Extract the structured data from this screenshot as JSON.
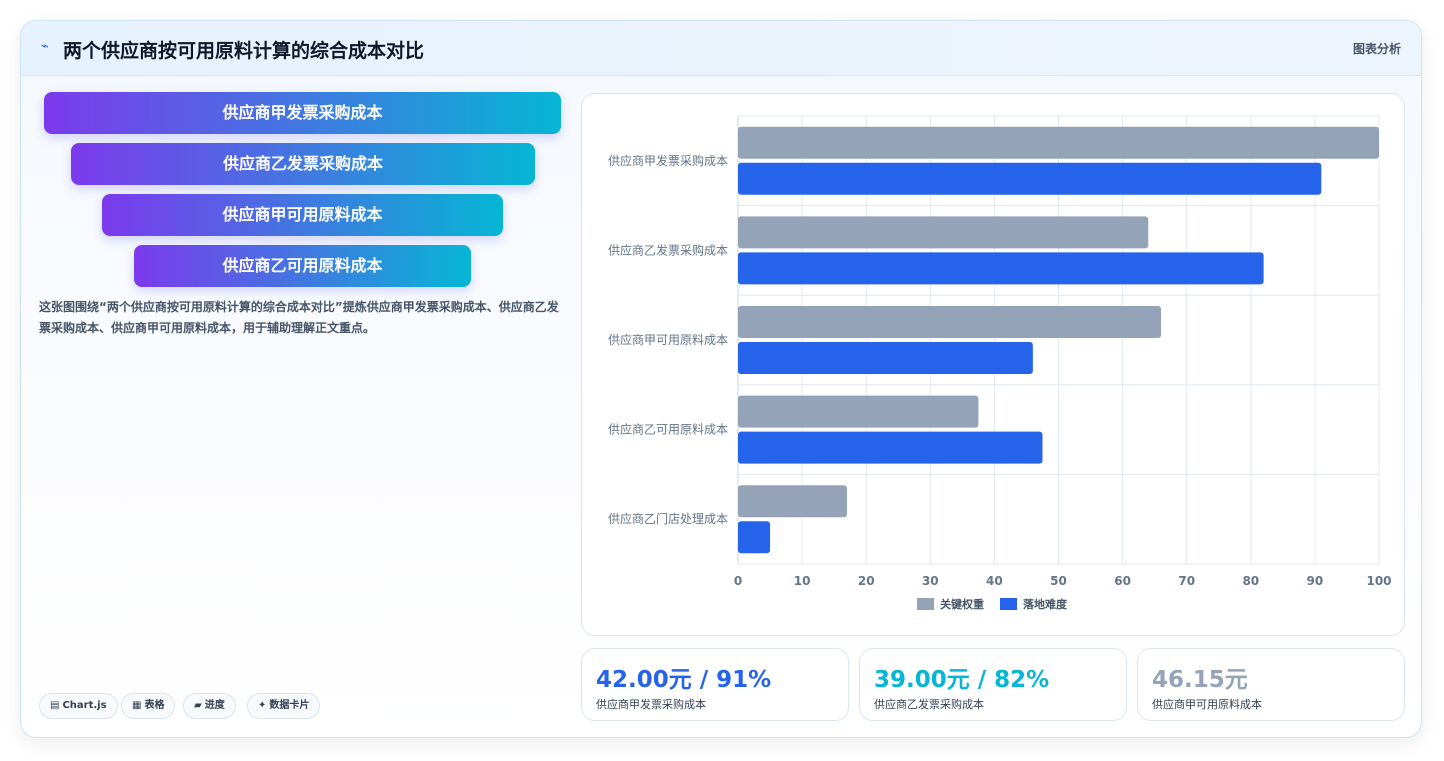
{
  "header": {
    "title": "两个供应商按可用原料计算的综合成本对比",
    "tag": "图表分析",
    "icon": "chart-line-icon"
  },
  "funnel": {
    "items": [
      {
        "label": "供应商甲发票采购成本"
      },
      {
        "label": "供应商乙发票采购成本"
      },
      {
        "label": "供应商甲可用原料成本"
      },
      {
        "label": "供应商乙可用原料成本"
      }
    ]
  },
  "description": "这张图围绕“两个供应商按可用原料计算的综合成本对比”提炼供应商甲发票采购成本、供应商乙发票采购成本、供应商甲可用原料成本，用于辅助理解正文重点。",
  "pills": [
    {
      "icon": "▤",
      "label": "Chart.js"
    },
    {
      "icon": "▦",
      "label": "表格"
    },
    {
      "icon": "▰",
      "label": "进度"
    },
    {
      "icon": "✦",
      "label": "数据卡片"
    }
  ],
  "kpis": [
    {
      "value": "42.00元 / 91%",
      "label": "供应商甲发票采购成本",
      "color": "#2563eb"
    },
    {
      "value": "39.00元 / 82%",
      "label": "供应商乙发票采购成本",
      "color": "#06b6d4"
    },
    {
      "value": "46.15元",
      "label": "供应商甲可用原料成本",
      "color": "#94a3b8"
    }
  ],
  "chart_data": {
    "type": "bar",
    "orientation": "horizontal",
    "categories": [
      "供应商甲发票采购成本",
      "供应商乙发票采购成本",
      "供应商甲可用原料成本",
      "供应商乙可用原料成本",
      "供应商乙门店处理成本"
    ],
    "series": [
      {
        "name": "关键权重",
        "values": [
          100,
          64,
          66,
          37.5,
          17
        ],
        "color": "#94a3b8"
      },
      {
        "name": "落地难度",
        "values": [
          91,
          82,
          46,
          47.5,
          5
        ],
        "color": "#2563eb"
      }
    ],
    "xlim": [
      0,
      100
    ],
    "xticks": [
      0,
      10,
      20,
      30,
      40,
      50,
      60,
      70,
      80,
      90,
      100
    ],
    "grid": true,
    "legend": "bottom"
  }
}
